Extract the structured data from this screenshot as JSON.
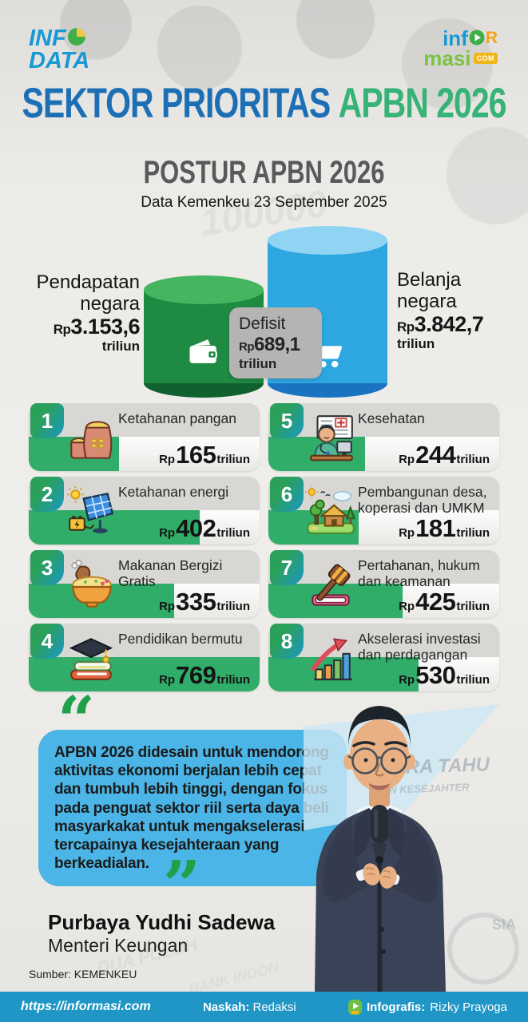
{
  "brand": {
    "infodata": {
      "line1": "INF",
      "line2": "DATA",
      "pie_icon": "pie-chart-icon"
    },
    "informasi": {
      "part1": "inf",
      "part2": "R",
      "line2": "masi",
      "badge": "COM",
      "play_icon": "play-icon"
    }
  },
  "title": {
    "blue": "SEKTOR PRIORITAS",
    "green": "APBN 2026"
  },
  "postur": {
    "heading": "POSTUR APBN 2026",
    "subheading": "Data Kemenkeu 23 September 2025",
    "revenue": {
      "label": "Pendapatan negara",
      "prefix": "Rp",
      "value": "3.153,6",
      "unit": "triliun",
      "icon": "wallet-icon"
    },
    "spending": {
      "label": "Belanja negara",
      "prefix": "Rp",
      "value": "3.842,7",
      "unit": "triliun",
      "icon": "cart-icon"
    },
    "deficit": {
      "label": "Defisit",
      "prefix": "Rp",
      "value": "689,1",
      "unit": "triliun"
    }
  },
  "sectors": [
    {
      "num": "1",
      "label": "Ketahanan pangan",
      "prefix": "Rp",
      "value": "165",
      "unit": "triliun",
      "bar_pct": 39,
      "icon": "grain-sack-icon"
    },
    {
      "num": "2",
      "label": "Ketahanan energi",
      "prefix": "Rp",
      "value": "402",
      "unit": "triliun",
      "bar_pct": 74,
      "icon": "solar-panel-icon"
    },
    {
      "num": "3",
      "label": "Makanan Bergizi Gratis",
      "prefix": "Rp",
      "value": "335",
      "unit": "triliun",
      "bar_pct": 63,
      "icon": "food-bowl-icon"
    },
    {
      "num": "4",
      "label": "Pendidikan bermutu",
      "prefix": "Rp",
      "value": "769",
      "unit": "triliun",
      "bar_pct": 100,
      "icon": "graduation-books-icon"
    },
    {
      "num": "5",
      "label": "Kesehatan",
      "prefix": "Rp",
      "value": "244",
      "unit": "triliun",
      "bar_pct": 42,
      "icon": "doctor-icon"
    },
    {
      "num": "6",
      "label": "Pembangunan desa, koperasi dan UMKM",
      "prefix": "Rp",
      "value": "181",
      "unit": "triliun",
      "bar_pct": 39,
      "icon": "village-icon"
    },
    {
      "num": "7",
      "label": "Pertahanan, hukum dan keamanan",
      "prefix": "Rp",
      "value": "425",
      "unit": "triliun",
      "bar_pct": 58,
      "icon": "gavel-icon"
    },
    {
      "num": "8",
      "label": "Akselerasi investasi dan perdagangan",
      "prefix": "Rp",
      "value": "530",
      "unit": "triliun",
      "bar_pct": 65,
      "icon": "growth-chart-icon"
    }
  ],
  "quote": {
    "open_mark": "“",
    "close_mark": "”",
    "text": "APBN 2026 didesain untuk mendorong aktivitas ekonomi berjalan lebih cepat dan tumbuh lebih tinggi, dengan fokus  pada penguat sektor riil serta daya beli masyarkakat untuk mengakselerasi  tercapainya kesejahteraan yang berkeadialan.",
    "name": "Purbaya Yudhi Sadewa",
    "role": "Menteri Keungan"
  },
  "source": "Sumber: KEMENKEU",
  "footer": {
    "url": "https://informasi.com",
    "naskah_label": "Naskah:",
    "naskah_value": " Redaksi",
    "infografis_label": "Infografis:",
    "infografis_value": " Rizky Prayoga"
  },
  "background_texture": {
    "banknote_number": "100000",
    "text1": "GARA TAHU",
    "text2": "AN KESEJAHTER",
    "text3": "SIA",
    "text4": "DUA PULUH",
    "text5": "BANK INDON"
  },
  "colors": {
    "accent_blue": "#1d6fb5",
    "accent_green": "#36b376",
    "bar_green": "#2fad69",
    "cylinder_green": "#1f8a42",
    "cylinder_blue": "#2ea7e0",
    "quote_blue": "#4ab5e6",
    "footer_blue": "#1f96c6"
  },
  "chart_data": [
    {
      "type": "bar",
      "title": "POSTUR APBN 2026",
      "subtitle": "Data Kemenkeu 23 September 2025",
      "categories": [
        "Pendapatan negara",
        "Belanja negara"
      ],
      "values": [
        3153.6,
        3842.7
      ],
      "unit": "Rp triliun",
      "annotations": [
        {
          "label": "Defisit",
          "value": 689.1,
          "unit": "Rp triliun"
        }
      ]
    },
    {
      "type": "bar",
      "title": "Sektor Prioritas APBN 2026",
      "categories": [
        "Ketahanan pangan",
        "Ketahanan energi",
        "Makanan Bergizi Gratis",
        "Pendidikan bermutu",
        "Kesehatan",
        "Pembangunan desa, koperasi dan UMKM",
        "Pertahanan, hukum dan keamanan",
        "Akselerasi investasi dan perdagangan"
      ],
      "values": [
        165,
        402,
        335,
        769,
        244,
        181,
        425,
        530
      ],
      "unit": "Rp triliun"
    }
  ]
}
